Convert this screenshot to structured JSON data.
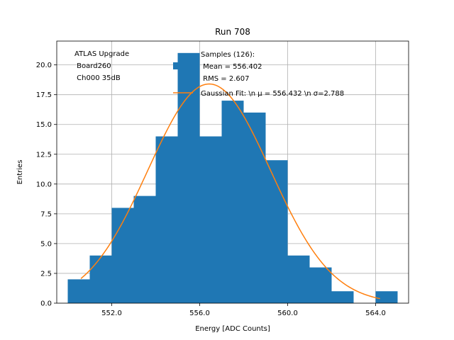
{
  "chart_data": {
    "type": "bar",
    "title": "Run 708",
    "xlabel": "Energy [ADC Counts]",
    "ylabel": "Entries",
    "xlim": [
      549.5,
      565.5
    ],
    "ylim": [
      0,
      22
    ],
    "x_ticks": [
      552,
      556,
      560,
      564
    ],
    "x_tick_labels": [
      "552.0",
      "556.0",
      "560.0",
      "564.0"
    ],
    "y_ticks": [
      0,
      2.5,
      5,
      7.5,
      10,
      12.5,
      15,
      17.5,
      20
    ],
    "y_tick_labels": [
      "0.0",
      "2.5",
      "5.0",
      "7.5",
      "10.0",
      "12.5",
      "15.0",
      "17.5",
      "20.0"
    ],
    "grid": true,
    "bin_width": 1,
    "bin_lefts": [
      550,
      551,
      552,
      553,
      554,
      555,
      556,
      557,
      558,
      559,
      560,
      561,
      562,
      563,
      564
    ],
    "counts": [
      2,
      4,
      8,
      9,
      14,
      21,
      14,
      17,
      16,
      12,
      4,
      3,
      1,
      0,
      1
    ],
    "bar_color": "#1f77b4",
    "fit": {
      "amplitude": 18.4,
      "mean": 556.432,
      "sigma": 2.788,
      "x_range": [
        550.6,
        564.2
      ],
      "color": "#ff7f0e"
    },
    "legend": {
      "position": "upper-right",
      "entries": [
        {
          "kind": "bar",
          "lines": [
            "Samples (126):",
            " Mean = 556.402",
            " RMS = 2.607"
          ]
        },
        {
          "kind": "line",
          "lines": [
            "Gaussian Fit: \\n μ = 556.432 \\n σ=2.788"
          ]
        }
      ]
    },
    "annotation": {
      "lines": [
        "ATLAS Upgrade",
        " Board260",
        " Ch000 35dB"
      ]
    }
  }
}
